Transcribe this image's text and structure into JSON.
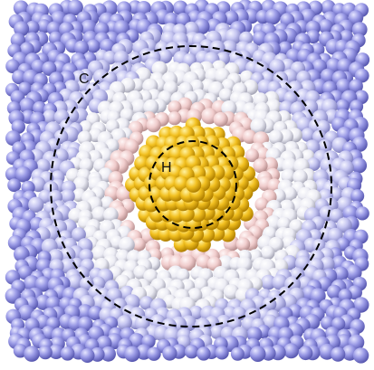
{
  "labels": {
    "outer": "C",
    "inner": "H"
  }
}
